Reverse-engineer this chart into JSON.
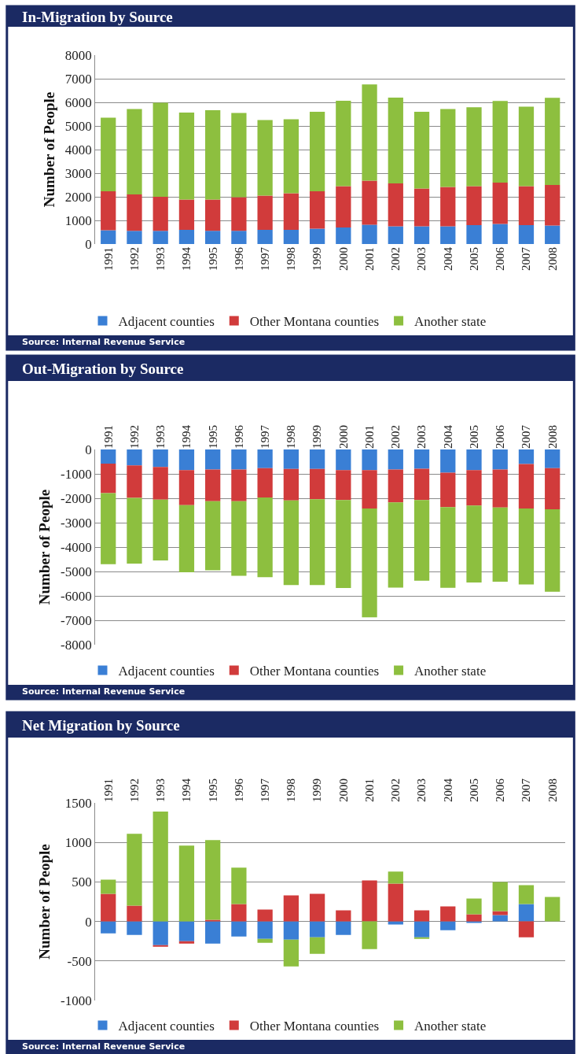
{
  "chart_data": [
    {
      "type": "bar",
      "title": "In-Migration by Source",
      "ylabel": "Number of People",
      "stacked": true,
      "grid": "y",
      "legend": "bottom",
      "annotations": [
        "Source: Internal Revenue Service"
      ],
      "categories": [
        "1991",
        "1992",
        "1993",
        "1994",
        "1995",
        "1996",
        "1997",
        "1998",
        "1999",
        "2000",
        "2001",
        "2002",
        "2003",
        "2004",
        "2005",
        "2006",
        "2007",
        "2008"
      ],
      "ylim": [
        0,
        8000
      ],
      "yticks": [
        0,
        1000,
        2000,
        3000,
        4000,
        5000,
        6000,
        7000,
        8000
      ],
      "series": [
        {
          "name": "Adjacent counties",
          "color": "#3a7fd5",
          "values": [
            580,
            560,
            560,
            600,
            560,
            560,
            600,
            600,
            650,
            700,
            820,
            750,
            750,
            750,
            800,
            850,
            800,
            780
          ]
        },
        {
          "name": "Other Montana counties",
          "color": "#d13b3b",
          "values": [
            1650,
            1540,
            1440,
            1280,
            1320,
            1420,
            1450,
            1550,
            1580,
            1750,
            1860,
            1820,
            1600,
            1670,
            1650,
            1750,
            1650,
            1720
          ]
        },
        {
          "name": "Another state",
          "color": "#8dbf3f",
          "values": [
            3120,
            3620,
            3980,
            3690,
            3790,
            3570,
            3200,
            3130,
            3370,
            3620,
            4080,
            3630,
            3250,
            3300,
            3340,
            3460,
            3370,
            3690
          ]
        }
      ]
    },
    {
      "type": "bar",
      "title": "Out-Migration by Source",
      "ylabel": "Number of People",
      "stacked": true,
      "grid": "y",
      "legend": "bottom",
      "annotations": [
        "Source: Internal Revenue Service"
      ],
      "categories": [
        "1991",
        "1992",
        "1993",
        "1994",
        "1995",
        "1996",
        "1997",
        "1998",
        "1999",
        "2000",
        "2001",
        "2002",
        "2003",
        "2004",
        "2005",
        "2006",
        "2007",
        "2008"
      ],
      "ylim": [
        -8000,
        0
      ],
      "yticks": [
        -8000,
        -7000,
        -6000,
        -5000,
        -4000,
        -3000,
        -2000,
        -1000,
        0
      ],
      "series": [
        {
          "name": "Adjacent counties",
          "color": "#3a7fd5",
          "values": [
            -580,
            -650,
            -720,
            -850,
            -820,
            -820,
            -770,
            -800,
            -800,
            -850,
            -850,
            -820,
            -790,
            -950,
            -850,
            -820,
            -600,
            -770
          ]
        },
        {
          "name": "Other Montana counties",
          "color": "#d13b3b",
          "values": [
            -1210,
            -1330,
            -1340,
            -1430,
            -1300,
            -1300,
            -1200,
            -1290,
            -1240,
            -1220,
            -1570,
            -1350,
            -1280,
            -1410,
            -1450,
            -1560,
            -1820,
            -1680
          ]
        },
        {
          "name": "Another state",
          "color": "#8dbf3f",
          "values": [
            -2910,
            -2700,
            -2490,
            -2750,
            -2830,
            -3060,
            -3260,
            -3470,
            -3520,
            -3610,
            -4460,
            -3490,
            -3310,
            -3310,
            -3150,
            -3040,
            -3110,
            -3380
          ]
        }
      ]
    },
    {
      "type": "bar",
      "title": "Net Migration by Source",
      "ylabel": "Number of People",
      "stacked": true,
      "grid": "y",
      "legend": "bottom",
      "annotations": [
        "Source: Internal Revenue Service"
      ],
      "categories": [
        "1991",
        "1992",
        "1993",
        "1994",
        "1995",
        "1996",
        "1997",
        "1998",
        "1999",
        "2000",
        "2001",
        "2002",
        "2003",
        "2004",
        "2005",
        "2006",
        "2007",
        "2008"
      ],
      "ylim": [
        -1000,
        1500
      ],
      "yticks": [
        -1000,
        -500,
        0,
        500,
        1000,
        1500
      ],
      "series": [
        {
          "name": "Adjacent counties",
          "color": "#3a7fd5",
          "values": [
            -150,
            -170,
            -300,
            -250,
            -280,
            -190,
            -220,
            -230,
            -200,
            -170,
            null,
            -40,
            -200,
            -110,
            -20,
            80,
            220,
            null
          ]
        },
        {
          "name": "Other Montana counties",
          "color": "#d13b3b",
          "values": [
            350,
            200,
            -20,
            -30,
            20,
            220,
            150,
            330,
            350,
            140,
            520,
            480,
            140,
            190,
            90,
            50,
            -200,
            null
          ]
        },
        {
          "name": "Another state",
          "color": "#8dbf3f",
          "values": [
            180,
            910,
            1390,
            960,
            1010,
            460,
            -50,
            -340,
            -210,
            null,
            -350,
            150,
            -20,
            null,
            200,
            370,
            240,
            310
          ]
        }
      ]
    }
  ]
}
